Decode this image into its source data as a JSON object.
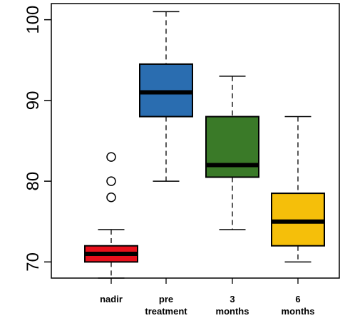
{
  "chart_data": {
    "type": "box",
    "title": "",
    "xlabel": "",
    "ylabel": "",
    "ylim": [
      68,
      102
    ],
    "y_ticks": [
      70,
      80,
      90,
      100
    ],
    "grid": false,
    "categories": [
      {
        "label_lines": [
          "nadir"
        ],
        "color": "#e8101c",
        "min": 68,
        "q1": 70,
        "median": 71,
        "q3": 72,
        "max": 74,
        "outliers": [
          78,
          80,
          83
        ]
      },
      {
        "label_lines": [
          "pre",
          "treatment"
        ],
        "color": "#2a6db0",
        "min": 80,
        "q1": 88,
        "median": 91,
        "q3": 94.5,
        "max": 101,
        "outliers": []
      },
      {
        "label_lines": [
          "3",
          "months"
        ],
        "color": "#3a7a28",
        "min": 74,
        "q1": 80.5,
        "median": 82,
        "q3": 88,
        "max": 93,
        "outliers": []
      },
      {
        "label_lines": [
          "6",
          "months"
        ],
        "color": "#f5bf0a",
        "min": 70,
        "q1": 72,
        "median": 75,
        "q3": 78.5,
        "max": 88,
        "outliers": []
      }
    ]
  }
}
